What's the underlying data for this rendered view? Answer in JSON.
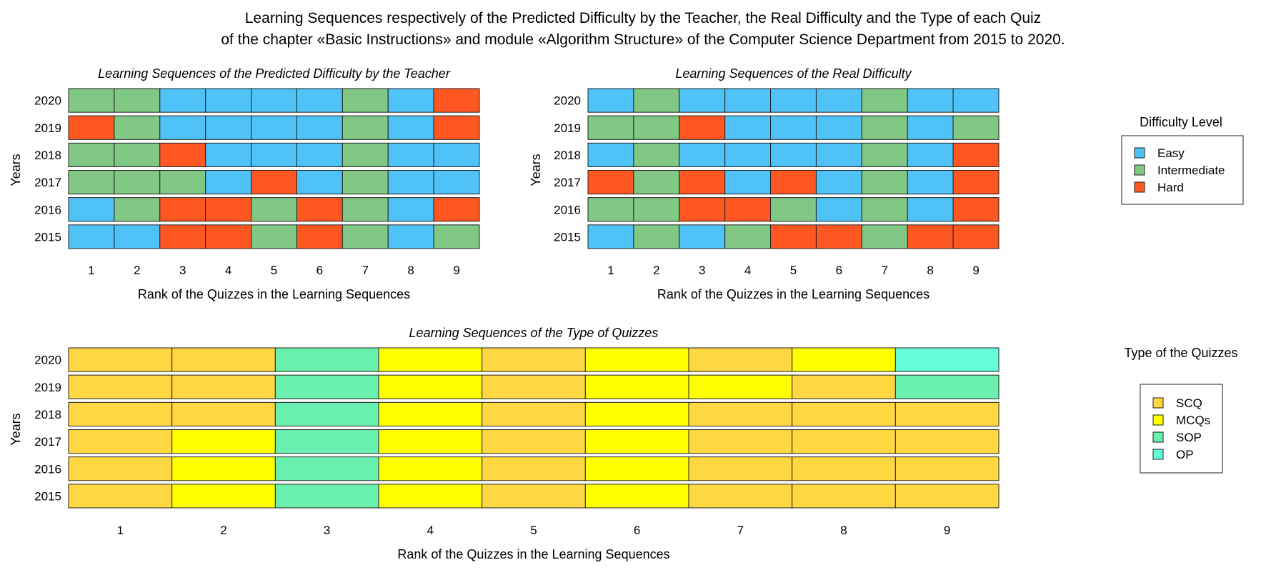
{
  "title_line1": "Learning Sequences respectively of the Predicted Difficulty by the Teacher, the Real Difficulty and the Type of each Quiz",
  "title_line2": "of the chapter «Basic Instructions» and module «Algorithm Structure» of the Computer Science Department from 2015 to 2020.",
  "colors": {
    "E": "#4FC3F7",
    "I": "#80C883",
    "H": "#FF5722",
    "S": "#FFD740",
    "M": "#FFFF00",
    "P": "#69F0AE",
    "O": "#64FFDA"
  },
  "legends": {
    "difficulty": {
      "title": "Difficulty Level",
      "items": [
        {
          "code": "E",
          "label": "Easy"
        },
        {
          "code": "I",
          "label": "Intermediate"
        },
        {
          "code": "H",
          "label": "Hard"
        }
      ]
    },
    "type": {
      "title": "Type of the Quizzes",
      "items": [
        {
          "code": "S",
          "label": "SCQ"
        },
        {
          "code": "M",
          "label": "MCQs"
        },
        {
          "code": "P",
          "label": "SOP"
        },
        {
          "code": "O",
          "label": "OP"
        }
      ]
    }
  },
  "chart_data": [
    {
      "type": "heatmap",
      "title": "Learning Sequences of the Predicted Difficulty by the Teacher",
      "xlabel": "Rank of the Quizzes in the Learning Sequences",
      "ylabel": "Years",
      "x": [
        1,
        2,
        3,
        4,
        5,
        6,
        7,
        8,
        9
      ],
      "y": [
        "2020",
        "2019",
        "2018",
        "2017",
        "2016",
        "2015"
      ],
      "values": [
        [
          "I",
          "I",
          "E",
          "E",
          "E",
          "E",
          "I",
          "E",
          "H"
        ],
        [
          "H",
          "I",
          "E",
          "E",
          "E",
          "E",
          "I",
          "E",
          "H"
        ],
        [
          "I",
          "I",
          "H",
          "E",
          "E",
          "E",
          "I",
          "E",
          "E"
        ],
        [
          "I",
          "I",
          "I",
          "E",
          "H",
          "E",
          "I",
          "E",
          "E"
        ],
        [
          "E",
          "I",
          "H",
          "H",
          "I",
          "H",
          "I",
          "E",
          "H"
        ],
        [
          "E",
          "E",
          "H",
          "H",
          "I",
          "H",
          "I",
          "E",
          "I"
        ]
      ]
    },
    {
      "type": "heatmap",
      "title": "Learning Sequences of the Real Difficulty",
      "xlabel": "Rank of the Quizzes in the Learning Sequences",
      "ylabel": "Years",
      "x": [
        1,
        2,
        3,
        4,
        5,
        6,
        7,
        8,
        9
      ],
      "y": [
        "2020",
        "2019",
        "2018",
        "2017",
        "2016",
        "2015"
      ],
      "values": [
        [
          "E",
          "I",
          "E",
          "E",
          "E",
          "E",
          "I",
          "E",
          "E"
        ],
        [
          "I",
          "I",
          "H",
          "E",
          "E",
          "E",
          "I",
          "E",
          "I"
        ],
        [
          "E",
          "I",
          "E",
          "E",
          "E",
          "E",
          "I",
          "E",
          "H"
        ],
        [
          "H",
          "I",
          "H",
          "E",
          "H",
          "E",
          "I",
          "E",
          "H"
        ],
        [
          "I",
          "I",
          "H",
          "H",
          "I",
          "E",
          "I",
          "E",
          "H"
        ],
        [
          "E",
          "I",
          "E",
          "I",
          "H",
          "H",
          "I",
          "H",
          "H"
        ]
      ]
    },
    {
      "type": "heatmap",
      "title": "Learning Sequences of the Type of Quizzes",
      "xlabel": "Rank of the Quizzes in the Learning Sequences",
      "ylabel": "Years",
      "x": [
        1,
        2,
        3,
        4,
        5,
        6,
        7,
        8,
        9
      ],
      "y": [
        "2020",
        "2019",
        "2018",
        "2017",
        "2016",
        "2015"
      ],
      "values": [
        [
          "S",
          "S",
          "P",
          "M",
          "S",
          "M",
          "S",
          "M",
          "O"
        ],
        [
          "S",
          "S",
          "P",
          "M",
          "S",
          "M",
          "M",
          "S",
          "P"
        ],
        [
          "S",
          "S",
          "P",
          "M",
          "S",
          "M",
          "S",
          "S",
          "S"
        ],
        [
          "S",
          "M",
          "P",
          "M",
          "S",
          "M",
          "S",
          "S",
          "S"
        ],
        [
          "S",
          "M",
          "P",
          "M",
          "S",
          "M",
          "S",
          "S",
          "S"
        ],
        [
          "S",
          "M",
          "P",
          "M",
          "S",
          "M",
          "S",
          "S",
          "S"
        ]
      ]
    }
  ]
}
